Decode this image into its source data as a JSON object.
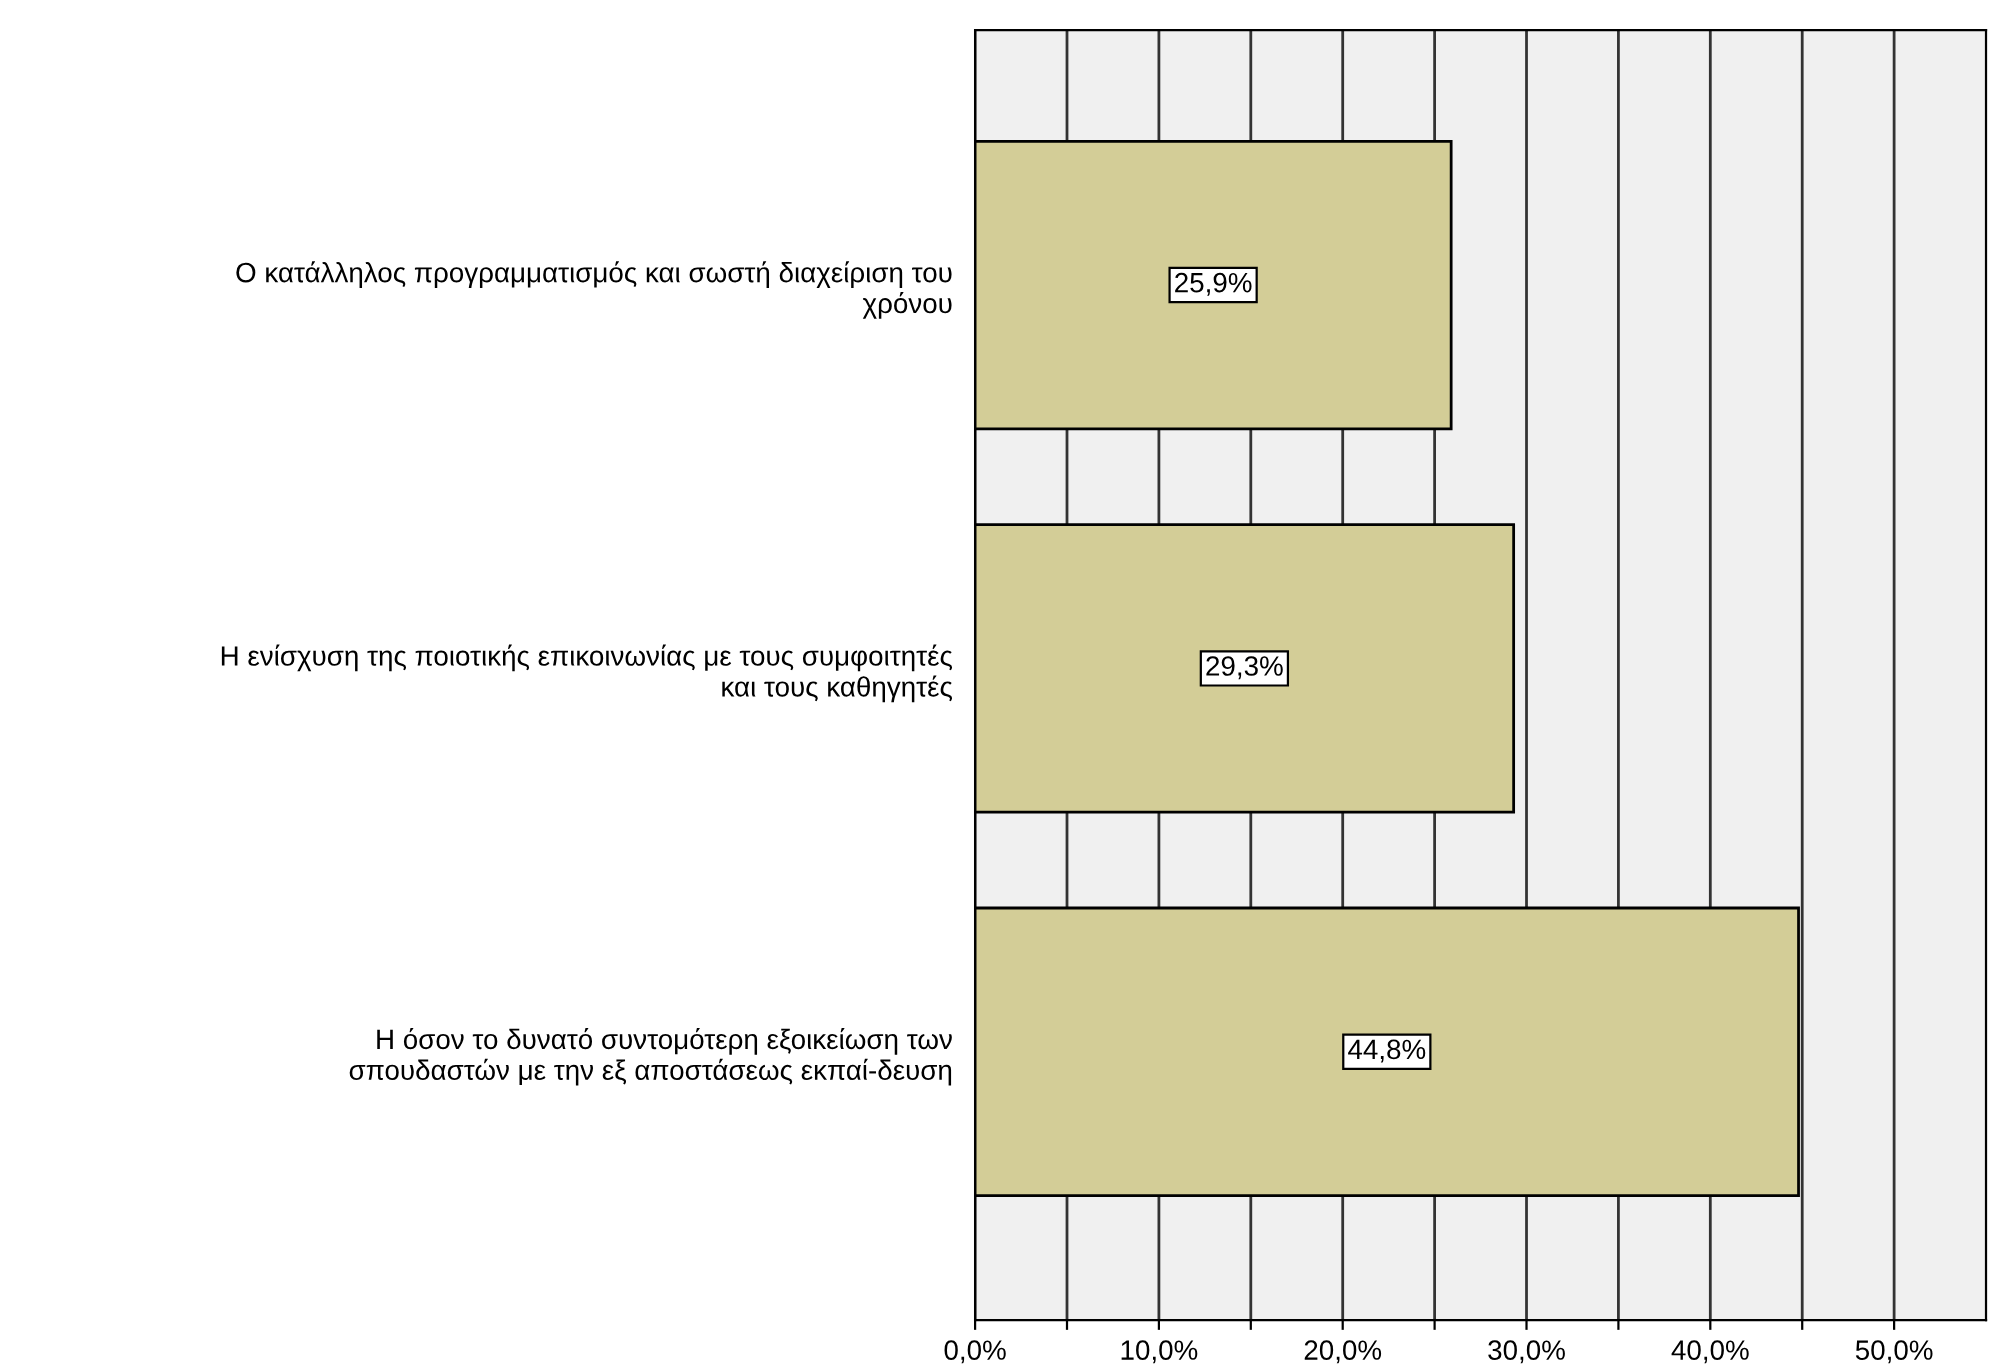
{
  "chart_data": {
    "type": "bar",
    "orientation": "horizontal",
    "categories": [
      "Ο κατάλληλος προγραμματισμός και σωστή διαχείριση του\nχρόνου",
      "Η ενίσχυση της ποιοτικής επικοινωνίας με τους συμφοιτητές\nκαι τους καθηγητές",
      "Η όσον το δυνατό συντομότερη εξοικείωση των\nσπουδαστών με την εξ αποστάσεως εκπαί-δευση"
    ],
    "values": [
      25.9,
      29.3,
      44.8
    ],
    "value_labels": [
      "25,9%",
      "29,3%",
      "44,8%"
    ],
    "color": "#d3cd97",
    "xlim": [
      0,
      55
    ],
    "xticks": [
      {
        "value": 0,
        "label": "0,0%"
      },
      {
        "value": 5,
        "label": null
      },
      {
        "value": 10,
        "label": "10,0%"
      },
      {
        "value": 15,
        "label": null
      },
      {
        "value": 20,
        "label": "20,0%"
      },
      {
        "value": 25,
        "label": null
      },
      {
        "value": 30,
        "label": "30,0%"
      },
      {
        "value": 35,
        "label": null
      },
      {
        "value": 40,
        "label": "40,0%"
      },
      {
        "value": 45,
        "label": null
      },
      {
        "value": 50,
        "label": "50,0%"
      }
    ],
    "grid": "x"
  }
}
